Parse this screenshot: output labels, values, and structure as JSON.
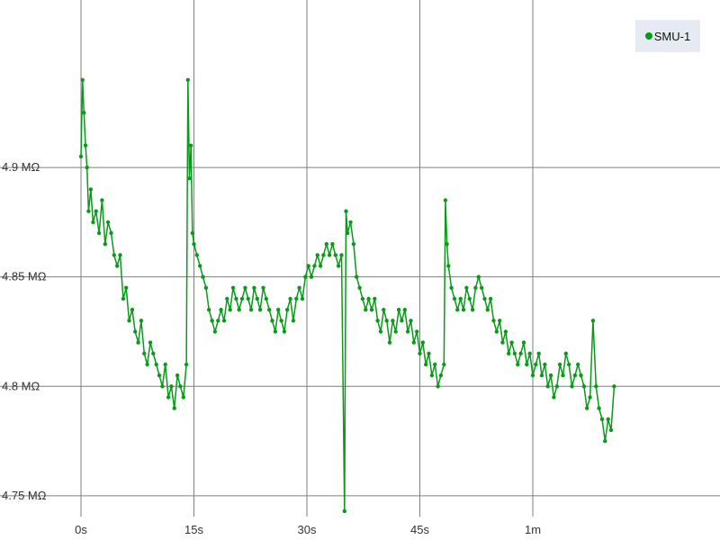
{
  "chart_data": {
    "type": "line",
    "title": "",
    "xlabel": "",
    "ylabel": "",
    "xlim": [
      0,
      72
    ],
    "ylim": [
      4.7405,
      4.9765
    ],
    "x_tick_values": [
      0,
      15,
      30,
      45,
      60
    ],
    "x_tick_labels": [
      "0s",
      "15s",
      "30s",
      "45s",
      "1m"
    ],
    "y_tick_values": [
      4.75,
      4.8,
      4.85,
      4.9
    ],
    "y_tick_labels": [
      "4.75 MΩ",
      "4.8 MΩ",
      "4.85 MΩ",
      "4.9 MΩ"
    ],
    "grid": true,
    "legend_position": "top-right",
    "series": [
      {
        "name": "SMU-1",
        "color": "#0a9a1a",
        "points": [
          [
            0.0,
            4.905
          ],
          [
            0.2,
            4.94
          ],
          [
            0.4,
            4.925
          ],
          [
            0.6,
            4.91
          ],
          [
            0.8,
            4.9
          ],
          [
            1.0,
            4.88
          ],
          [
            1.3,
            4.89
          ],
          [
            1.6,
            4.875
          ],
          [
            2.0,
            4.88
          ],
          [
            2.4,
            4.87
          ],
          [
            2.8,
            4.885
          ],
          [
            3.2,
            4.865
          ],
          [
            3.6,
            4.875
          ],
          [
            4.0,
            4.87
          ],
          [
            4.4,
            4.86
          ],
          [
            4.8,
            4.855
          ],
          [
            5.2,
            4.86
          ],
          [
            5.6,
            4.84
          ],
          [
            6.0,
            4.845
          ],
          [
            6.4,
            4.83
          ],
          [
            6.8,
            4.835
          ],
          [
            7.2,
            4.825
          ],
          [
            7.6,
            4.82
          ],
          [
            8.0,
            4.83
          ],
          [
            8.4,
            4.815
          ],
          [
            8.8,
            4.81
          ],
          [
            9.2,
            4.82
          ],
          [
            9.6,
            4.815
          ],
          [
            10.0,
            4.81
          ],
          [
            10.4,
            4.805
          ],
          [
            10.8,
            4.8
          ],
          [
            11.2,
            4.81
          ],
          [
            11.6,
            4.795
          ],
          [
            12.0,
            4.8
          ],
          [
            12.4,
            4.79
          ],
          [
            12.8,
            4.805
          ],
          [
            13.2,
            4.8
          ],
          [
            13.6,
            4.795
          ],
          [
            14.0,
            4.81
          ],
          [
            14.2,
            4.94
          ],
          [
            14.4,
            4.895
          ],
          [
            14.6,
            4.91
          ],
          [
            14.8,
            4.87
          ],
          [
            15.0,
            4.865
          ],
          [
            15.4,
            4.86
          ],
          [
            15.8,
            4.855
          ],
          [
            16.2,
            4.85
          ],
          [
            16.6,
            4.845
          ],
          [
            17.0,
            4.835
          ],
          [
            17.4,
            4.83
          ],
          [
            17.8,
            4.825
          ],
          [
            18.2,
            4.83
          ],
          [
            18.6,
            4.835
          ],
          [
            19.0,
            4.83
          ],
          [
            19.4,
            4.84
          ],
          [
            19.8,
            4.835
          ],
          [
            20.2,
            4.845
          ],
          [
            20.6,
            4.84
          ],
          [
            21.0,
            4.835
          ],
          [
            21.4,
            4.84
          ],
          [
            21.8,
            4.845
          ],
          [
            22.2,
            4.84
          ],
          [
            22.6,
            4.835
          ],
          [
            23.0,
            4.845
          ],
          [
            23.4,
            4.84
          ],
          [
            23.8,
            4.835
          ],
          [
            24.2,
            4.845
          ],
          [
            24.6,
            4.84
          ],
          [
            25.0,
            4.835
          ],
          [
            25.4,
            4.83
          ],
          [
            25.8,
            4.825
          ],
          [
            26.2,
            4.835
          ],
          [
            26.6,
            4.83
          ],
          [
            27.0,
            4.825
          ],
          [
            27.4,
            4.835
          ],
          [
            27.8,
            4.84
          ],
          [
            28.2,
            4.83
          ],
          [
            28.6,
            4.84
          ],
          [
            29.0,
            4.845
          ],
          [
            29.4,
            4.84
          ],
          [
            29.8,
            4.85
          ],
          [
            30.2,
            4.855
          ],
          [
            30.6,
            4.85
          ],
          [
            31.0,
            4.855
          ],
          [
            31.4,
            4.86
          ],
          [
            31.8,
            4.855
          ],
          [
            32.2,
            4.86
          ],
          [
            32.6,
            4.865
          ],
          [
            33.0,
            4.86
          ],
          [
            33.4,
            4.865
          ],
          [
            33.8,
            4.86
          ],
          [
            34.2,
            4.855
          ],
          [
            34.6,
            4.86
          ],
          [
            35.0,
            4.743
          ],
          [
            35.2,
            4.88
          ],
          [
            35.4,
            4.87
          ],
          [
            35.8,
            4.875
          ],
          [
            36.2,
            4.865
          ],
          [
            36.6,
            4.85
          ],
          [
            37.0,
            4.845
          ],
          [
            37.4,
            4.84
          ],
          [
            37.8,
            4.835
          ],
          [
            38.2,
            4.84
          ],
          [
            38.6,
            4.835
          ],
          [
            39.0,
            4.84
          ],
          [
            39.4,
            4.83
          ],
          [
            39.8,
            4.825
          ],
          [
            40.2,
            4.835
          ],
          [
            40.6,
            4.83
          ],
          [
            41.0,
            4.82
          ],
          [
            41.4,
            4.83
          ],
          [
            41.8,
            4.825
          ],
          [
            42.2,
            4.835
          ],
          [
            42.6,
            4.83
          ],
          [
            43.0,
            4.835
          ],
          [
            43.4,
            4.825
          ],
          [
            43.8,
            4.83
          ],
          [
            44.2,
            4.82
          ],
          [
            44.6,
            4.825
          ],
          [
            45.0,
            4.815
          ],
          [
            45.4,
            4.82
          ],
          [
            45.8,
            4.81
          ],
          [
            46.2,
            4.815
          ],
          [
            46.6,
            4.805
          ],
          [
            47.0,
            4.81
          ],
          [
            47.4,
            4.8
          ],
          [
            47.8,
            4.805
          ],
          [
            48.2,
            4.81
          ],
          [
            48.4,
            4.885
          ],
          [
            48.6,
            4.865
          ],
          [
            48.8,
            4.855
          ],
          [
            49.2,
            4.845
          ],
          [
            49.6,
            4.84
          ],
          [
            50.0,
            4.835
          ],
          [
            50.4,
            4.84
          ],
          [
            50.8,
            4.835
          ],
          [
            51.2,
            4.845
          ],
          [
            51.6,
            4.84
          ],
          [
            52.0,
            4.835
          ],
          [
            52.4,
            4.845
          ],
          [
            52.8,
            4.85
          ],
          [
            53.2,
            4.845
          ],
          [
            53.6,
            4.84
          ],
          [
            54.0,
            4.835
          ],
          [
            54.4,
            4.84
          ],
          [
            54.8,
            4.83
          ],
          [
            55.2,
            4.825
          ],
          [
            55.6,
            4.83
          ],
          [
            56.0,
            4.82
          ],
          [
            56.4,
            4.825
          ],
          [
            56.8,
            4.815
          ],
          [
            57.2,
            4.82
          ],
          [
            57.6,
            4.815
          ],
          [
            58.0,
            4.81
          ],
          [
            58.4,
            4.815
          ],
          [
            58.8,
            4.82
          ],
          [
            59.2,
            4.81
          ],
          [
            59.6,
            4.815
          ],
          [
            60.0,
            4.805
          ],
          [
            60.4,
            4.81
          ],
          [
            60.8,
            4.815
          ],
          [
            61.2,
            4.805
          ],
          [
            61.6,
            4.81
          ],
          [
            62.0,
            4.8
          ],
          [
            62.4,
            4.805
          ],
          [
            62.8,
            4.795
          ],
          [
            63.2,
            4.8
          ],
          [
            63.6,
            4.81
          ],
          [
            64.0,
            4.805
          ],
          [
            64.4,
            4.815
          ],
          [
            64.8,
            4.81
          ],
          [
            65.2,
            4.8
          ],
          [
            65.6,
            4.805
          ],
          [
            66.0,
            4.81
          ],
          [
            66.4,
            4.805
          ],
          [
            66.8,
            4.8
          ],
          [
            67.2,
            4.79
          ],
          [
            67.6,
            4.795
          ],
          [
            68.0,
            4.83
          ],
          [
            68.4,
            4.8
          ],
          [
            68.8,
            4.79
          ],
          [
            69.2,
            4.785
          ],
          [
            69.6,
            4.775
          ],
          [
            70.0,
            4.785
          ],
          [
            70.4,
            4.78
          ],
          [
            70.8,
            4.8
          ]
        ]
      }
    ]
  }
}
